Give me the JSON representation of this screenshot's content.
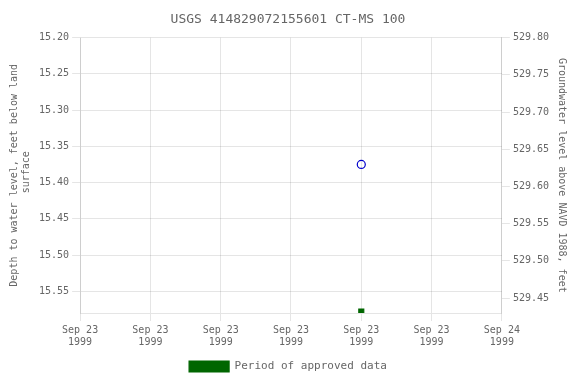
{
  "chart_data": {
    "type": "scatter",
    "title": "USGS 414829072155601 CT-MS 100",
    "ylabel": "Depth to water level, feet below land\n surface",
    "y2label": "Groundwater level above NAVD 1988, feet",
    "series": [
      {
        "color": "#0000cc",
        "marker": "open circle",
        "x": [
          16.0
        ],
        "values": [
          15.375
        ]
      },
      {
        "name": "Period of approved data",
        "color": "#006600",
        "marker": "square",
        "x": [
          16.0
        ],
        "values": [
          15.578
        ]
      }
    ],
    "xlim": [
      0,
      24
    ],
    "xticks": [
      {
        "value": 0,
        "label": "Sep 23\n1999"
      },
      {
        "value": 4,
        "label": "Sep 23\n1999"
      },
      {
        "value": 8,
        "label": "Sep 23\n1999"
      },
      {
        "value": 12,
        "label": "Sep 23\n1999"
      },
      {
        "value": 16,
        "label": "Sep 23\n1999"
      },
      {
        "value": 20,
        "label": "Sep 23\n1999"
      },
      {
        "value": 24,
        "label": "Sep 24\n1999"
      }
    ],
    "ylim": [
      15.58,
      15.2
    ],
    "yticks": [
      {
        "value": 15.2,
        "label": "15.20"
      },
      15.25,
      {
        "value": 15.3,
        "label": "15.30"
      },
      15.35,
      {
        "value": 15.4,
        "label": "15.40"
      },
      15.45,
      {
        "value": 15.5,
        "label": "15.50"
      },
      15.55
    ],
    "y2lim": [
      529.43,
      529.8
    ],
    "y2ticks": [
      {
        "value": 529.8,
        "label": "529.80"
      },
      529.75,
      {
        "value": 529.7,
        "label": "529.70"
      },
      529.65,
      {
        "value": 529.6,
        "label": "529.60"
      },
      529.55,
      {
        "value": 529.5,
        "label": "529.50"
      },
      529.45
    ],
    "grid": true,
    "legend": "bottom"
  }
}
